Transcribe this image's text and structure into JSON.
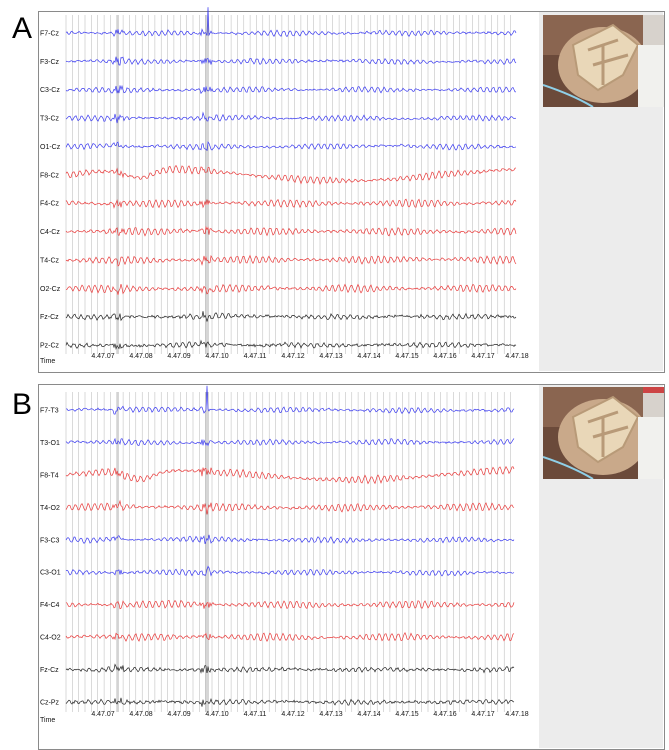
{
  "figure": {
    "panel_a_letter": "A",
    "panel_b_letter": "B"
  },
  "colors": {
    "blue": "#3b3bf0",
    "red": "#e83a3a",
    "black": "#222222",
    "grid": "#b5b5b5",
    "video_bg": "#ececec"
  },
  "chart_data": [
    {
      "type": "line",
      "panel": "A",
      "montage": "referential",
      "xlabel": "Time",
      "tick_labels": [
        "4.47.07",
        "4.47.08",
        "4.47.09",
        "4.47.10",
        "4.47.11",
        "4.47.12",
        "4.47.13",
        "4.47.14",
        "4.47.15",
        "4.47.16",
        "4.47.17",
        "4.47.18"
      ],
      "series": [
        {
          "name": "F7-Cz",
          "color": "blue"
        },
        {
          "name": "F3-Cz",
          "color": "blue"
        },
        {
          "name": "C3-Cz",
          "color": "blue"
        },
        {
          "name": "T3-Cz",
          "color": "blue"
        },
        {
          "name": "O1-Cz",
          "color": "blue"
        },
        {
          "name": "F8-Cz",
          "color": "red"
        },
        {
          "name": "F4-Cz",
          "color": "red"
        },
        {
          "name": "C4-Cz",
          "color": "red"
        },
        {
          "name": "T4-Cz",
          "color": "red"
        },
        {
          "name": "O2-Cz",
          "color": "red"
        },
        {
          "name": "Fz-Cz",
          "color": "black"
        },
        {
          "name": "Pz-Cz",
          "color": "black"
        }
      ]
    },
    {
      "type": "line",
      "panel": "B",
      "montage": "bipolar",
      "xlabel": "Time",
      "tick_labels": [
        "4.47.07",
        "4.47.08",
        "4.47.09",
        "4.47.10",
        "4.47.11",
        "4.47.12",
        "4.47.13",
        "4.47.14",
        "4.47.15",
        "4.47.16",
        "4.47.17",
        "4.47.18"
      ],
      "series": [
        {
          "name": "F7-T3",
          "color": "blue"
        },
        {
          "name": "T3-O1",
          "color": "blue"
        },
        {
          "name": "F8-T4",
          "color": "red"
        },
        {
          "name": "T4-O2",
          "color": "red"
        },
        {
          "name": "F3-C3",
          "color": "blue"
        },
        {
          "name": "C3-O1",
          "color": "blue"
        },
        {
          "name": "F4-C4",
          "color": "red"
        },
        {
          "name": "C4-O2",
          "color": "red"
        },
        {
          "name": "Fz-Cz",
          "color": "black"
        },
        {
          "name": "Cz-Pz",
          "color": "black"
        }
      ]
    }
  ]
}
